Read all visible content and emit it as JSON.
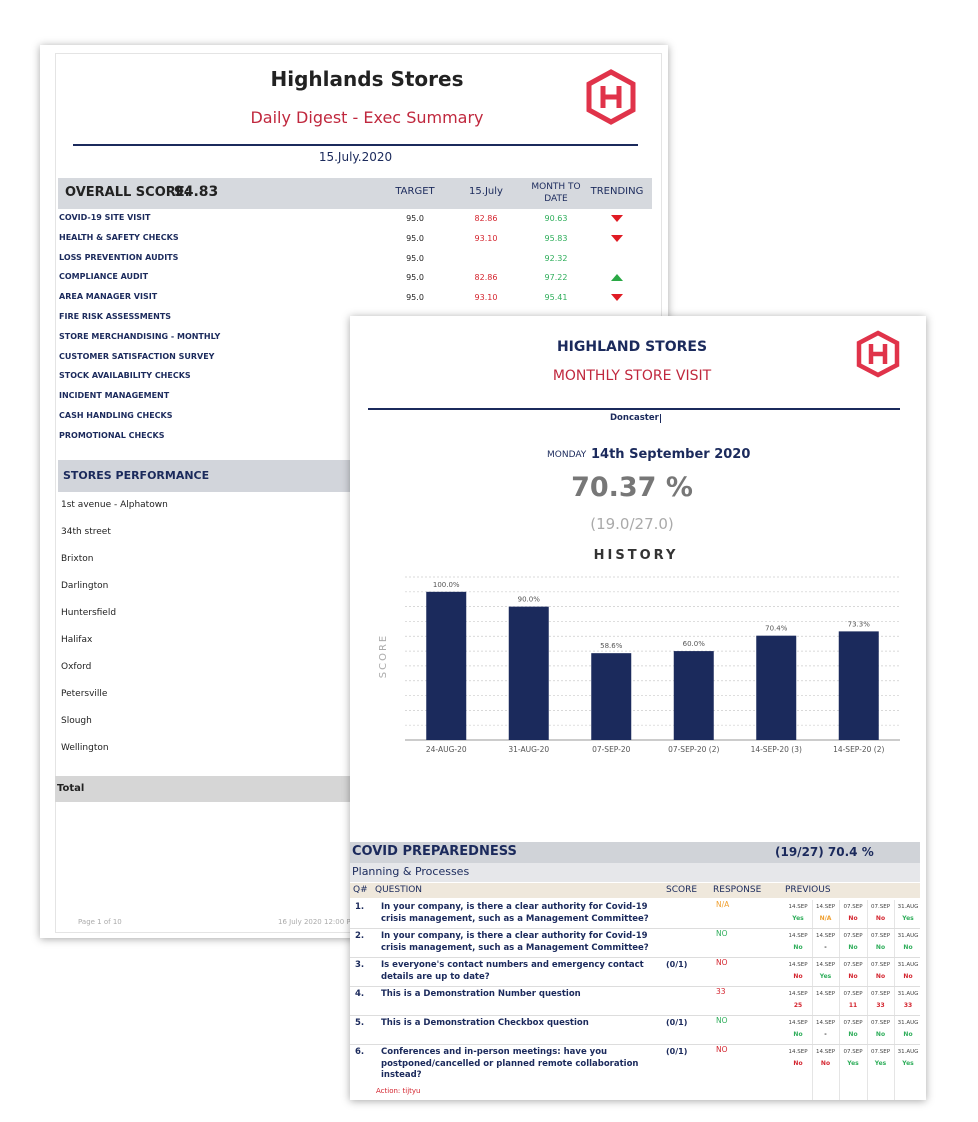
{
  "digest": {
    "title": "Highlands Stores",
    "subtitle": "Daily Digest - Exec Summary",
    "date": "15.July.2020",
    "score_label": "OVERALL SCORE:",
    "score": "94.83",
    "columns": [
      "TARGET",
      "15.July",
      "MONTH TO DATE",
      "TRENDING"
    ],
    "rows": [
      {
        "name": "COVID-19 SITE VISIT",
        "target": "95.0",
        "day": "82.86",
        "mtd": "90.63",
        "trend": "down"
      },
      {
        "name": "HEALTH & SAFETY CHECKS",
        "target": "95.0",
        "day": "93.10",
        "mtd": "95.83",
        "trend": "down"
      },
      {
        "name": "LOSS PREVENTION AUDITS",
        "target": "95.0",
        "day": null,
        "mtd": "92.32",
        "trend": null
      },
      {
        "name": "COMPLIANCE AUDIT",
        "target": "95.0",
        "day": "82.86",
        "mtd": "97.22",
        "trend": "up"
      },
      {
        "name": "AREA MANAGER VISIT",
        "target": "95.0",
        "day": "93.10",
        "mtd": "95.41",
        "trend": "down"
      },
      {
        "name": "FIRE RISK ASSESSMENTS"
      },
      {
        "name": "STORE MERCHANDISING - MONTHLY"
      },
      {
        "name": "CUSTOMER SATISFACTION SURVEY"
      },
      {
        "name": "STOCK AVAILABILITY CHECKS"
      },
      {
        "name": "INCIDENT MANAGEMENT"
      },
      {
        "name": "CASH HANDLING CHECKS"
      },
      {
        "name": "PROMOTIONAL CHECKS"
      }
    ],
    "stores_title": "STORES PERFORMANCE",
    "stores": [
      "1st avenue - Alphatown",
      "34th street",
      "Brixton",
      "Darlington",
      "Huntersfield",
      "Halifax",
      "Oxford",
      "Petersville",
      "Slough",
      "Wellington"
    ],
    "total": "Total",
    "footer_page": "Page 1 of 10",
    "footer_date": "16 July 2020 12:00 P"
  },
  "visit": {
    "title": "HIGHLAND STORES",
    "subtitle": "MONTHLY STORE VISIT",
    "location": "Doncaster",
    "weekday": "MONDAY",
    "date": "14th September 2020",
    "score": "70.37 %",
    "fraction": "(19.0/27.0)",
    "history_title": "HISTORY",
    "chart_data": {
      "type": "bar",
      "y_label": "SCORE",
      "categories": [
        "24-AUG-20",
        "31-AUG-20",
        "07-SEP-20",
        "07-SEP-20 (2)",
        "14-SEP-20 (3)",
        "14-SEP-20 (2)"
      ],
      "values": [
        100,
        90,
        58.6,
        60,
        70.4,
        73.3
      ],
      "value_labels": [
        "100.0%",
        "90.0%",
        "58.6%",
        "60.0%",
        "70.4%",
        "73.3%"
      ],
      "color": "#1b2a5c",
      "ylim": [
        0,
        110
      ],
      "yticks": [
        0,
        10,
        20,
        30,
        40,
        50,
        60,
        70,
        80,
        90,
        100,
        110
      ],
      "grid": true
    },
    "section": "COVID PREPAREDNESS",
    "section_score": "(19/27) 70.4 %",
    "subsection": "Planning & Processes",
    "columns": [
      "Q#",
      "QUESTION",
      "SCORE",
      "RESPONSE",
      "PREVIOUS"
    ],
    "previous_dates": [
      "14.SEP",
      "14.SEP",
      "07.SEP",
      "07.SEP",
      "31.AUG"
    ],
    "questions": [
      {
        "num": "1.",
        "text": "In your company, is there a clear authority for Covid-19 crisis management, such as a Management Committee?",
        "score": null,
        "response": "N/A",
        "tone": "orange",
        "previous": [
          "Yes",
          "N/A",
          "No",
          "No",
          "Yes"
        ]
      },
      {
        "num": "2.",
        "text": "In your company, is there a clear authority for Covid-19 crisis management, such as a Management Committee?",
        "score": null,
        "response": "NO",
        "tone": "green",
        "previous": [
          "No",
          "-",
          "No",
          "No",
          "No"
        ]
      },
      {
        "num": "3.",
        "text": "Is everyone's contact numbers and emergency contact details are up to date?",
        "score": "(0/1)",
        "response": "NO",
        "tone": "red",
        "previous": [
          "No",
          "Yes",
          "No",
          "No",
          "No"
        ]
      },
      {
        "num": "4.",
        "text": "This is a Demonstration Number question",
        "score": null,
        "response": "33",
        "tone": "red",
        "previous": [
          "25",
          null,
          "11",
          "33",
          "33"
        ]
      },
      {
        "num": "5.",
        "text": "This is a Demonstration Checkbox question",
        "score": "(0/1)",
        "response": "NO",
        "tone": "green",
        "previous": [
          "No",
          "-",
          "No",
          "No",
          "No"
        ]
      },
      {
        "num": "6.",
        "text": "Conferences and in-person meetings: have you postponed/cancelled or planned remote collaboration instead?",
        "score": "(0/1)",
        "response": "NO",
        "tone": "red",
        "previous": [
          "No",
          "No",
          "Yes",
          "Yes",
          "Yes"
        ],
        "action": "Action: tijtyu"
      }
    ]
  }
}
